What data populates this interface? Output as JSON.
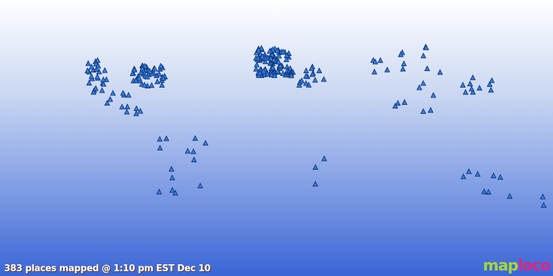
{
  "map": {
    "caption": "383 places mapped @ 1:10 pm EST Dec 10",
    "logo": {
      "part1": "map",
      "part2": "loco"
    },
    "marker_icon": "blue-triangle",
    "colors": {
      "ocean_top": "#ffffff",
      "ocean_bottom": "#3f6fd8",
      "land_top": "#ff7a00",
      "land_middle": "#ffff00",
      "land_bottom": "#ff7a00",
      "marker": "#2f7de0"
    }
  }
}
